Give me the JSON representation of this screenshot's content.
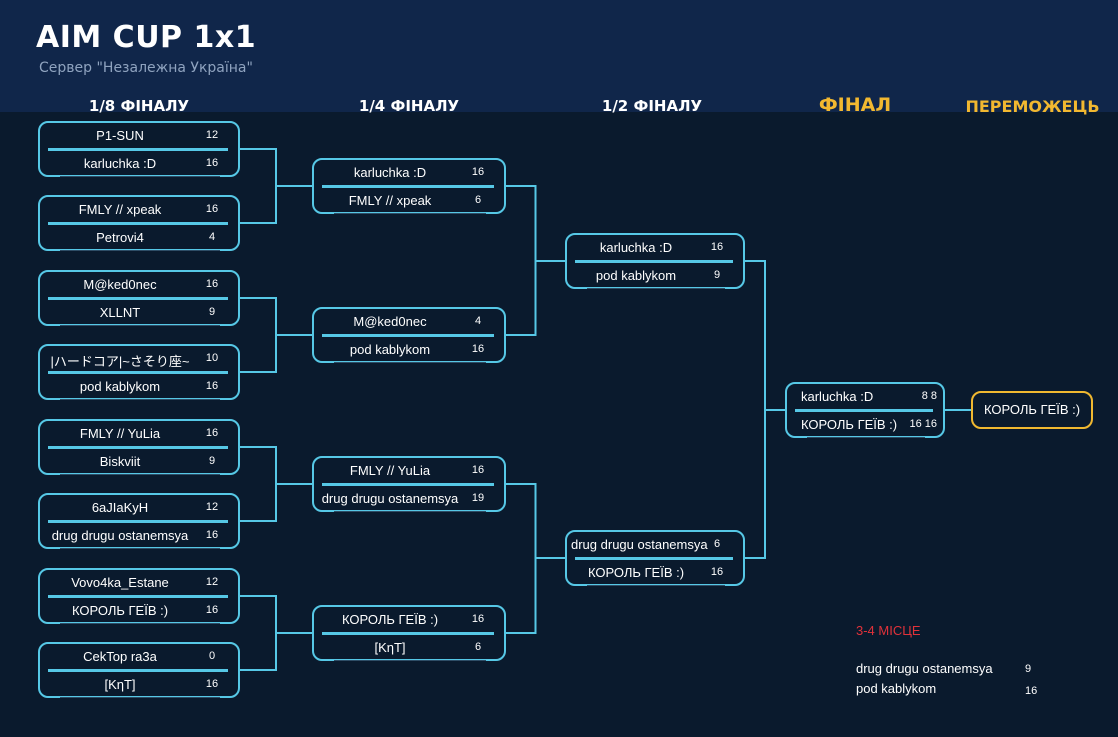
{
  "header": {
    "title": "AIM CUP 1x1",
    "subtitle": "Сервер \"Незалежна Україна\""
  },
  "rounds": {
    "r16": "1/8 ФІНАЛУ",
    "qf": "1/4 ФІНАЛУ",
    "sf": "1/2 ФІНАЛУ",
    "final": "ФІНАЛ",
    "winner": "ПЕРЕМОЖЕЦЬ"
  },
  "colors": {
    "accent": "#56c8e6",
    "gold": "#f2b830",
    "third": "#e0323a",
    "background": "#0a1a2d",
    "header": "#10264a"
  },
  "r16": [
    [
      {
        "name": "P1-SUN",
        "score": "12"
      },
      {
        "name": "karluchka :D",
        "score": "16"
      }
    ],
    [
      {
        "name": "FMLY // xpeak",
        "score": "16"
      },
      {
        "name": "Petrovi4",
        "score": "4"
      }
    ],
    [
      {
        "name": "M@ked0nec",
        "score": "16"
      },
      {
        "name": "XLLNT",
        "score": "9"
      }
    ],
    [
      {
        "name": "|ハードコア|~さそり座~",
        "score": "10"
      },
      {
        "name": "pod kablykom",
        "score": "16"
      }
    ],
    [
      {
        "name": "FMLY // YuLia",
        "score": "16"
      },
      {
        "name": "Biskviit",
        "score": "9"
      }
    ],
    [
      {
        "name": "6aJIaKyH",
        "score": "12"
      },
      {
        "name": "drug drugu ostanemsya",
        "score": "16"
      }
    ],
    [
      {
        "name": "Vovo4ka_Estane",
        "score": "12"
      },
      {
        "name": "КОРОЛЬ ГЕЇВ :)",
        "score": "16"
      }
    ],
    [
      {
        "name": "CekTop ra3a",
        "score": "0"
      },
      {
        "name": "[KηT]",
        "score": "16"
      }
    ]
  ],
  "qf": [
    [
      {
        "name": "karluchka :D",
        "score": "16"
      },
      {
        "name": "FMLY // xpeak",
        "score": "6"
      }
    ],
    [
      {
        "name": "M@ked0nec",
        "score": "4"
      },
      {
        "name": "pod kablykom",
        "score": "16"
      }
    ],
    [
      {
        "name": "FMLY // YuLia",
        "score": "16"
      },
      {
        "name": "drug drugu ostanemsya",
        "score": "19"
      }
    ],
    [
      {
        "name": "КОРОЛЬ ГЕЇВ :)",
        "score": "16"
      },
      {
        "name": "[KηT]",
        "score": "6"
      }
    ]
  ],
  "sf": [
    [
      {
        "name": "karluchka :D",
        "score": "16"
      },
      {
        "name": "pod kablykom",
        "score": "9"
      }
    ],
    [
      {
        "name": "drug drugu ostanemsya",
        "score": "6"
      },
      {
        "name": "КОРОЛЬ ГЕЇВ :)",
        "score": "16"
      }
    ]
  ],
  "final": [
    [
      {
        "name": "karluchka :D",
        "score": "8  8"
      },
      {
        "name": "КОРОЛЬ ГЕЇВ :)",
        "score": "16 16"
      }
    ]
  ],
  "winner": "КОРОЛЬ ГЕЇВ :)",
  "third_place": {
    "title": "3-4 МІСЦЕ",
    "players": [
      {
        "name": "drug drugu ostanemsya",
        "score": "9"
      },
      {
        "name": "pod kablykom",
        "score": "16"
      }
    ]
  }
}
